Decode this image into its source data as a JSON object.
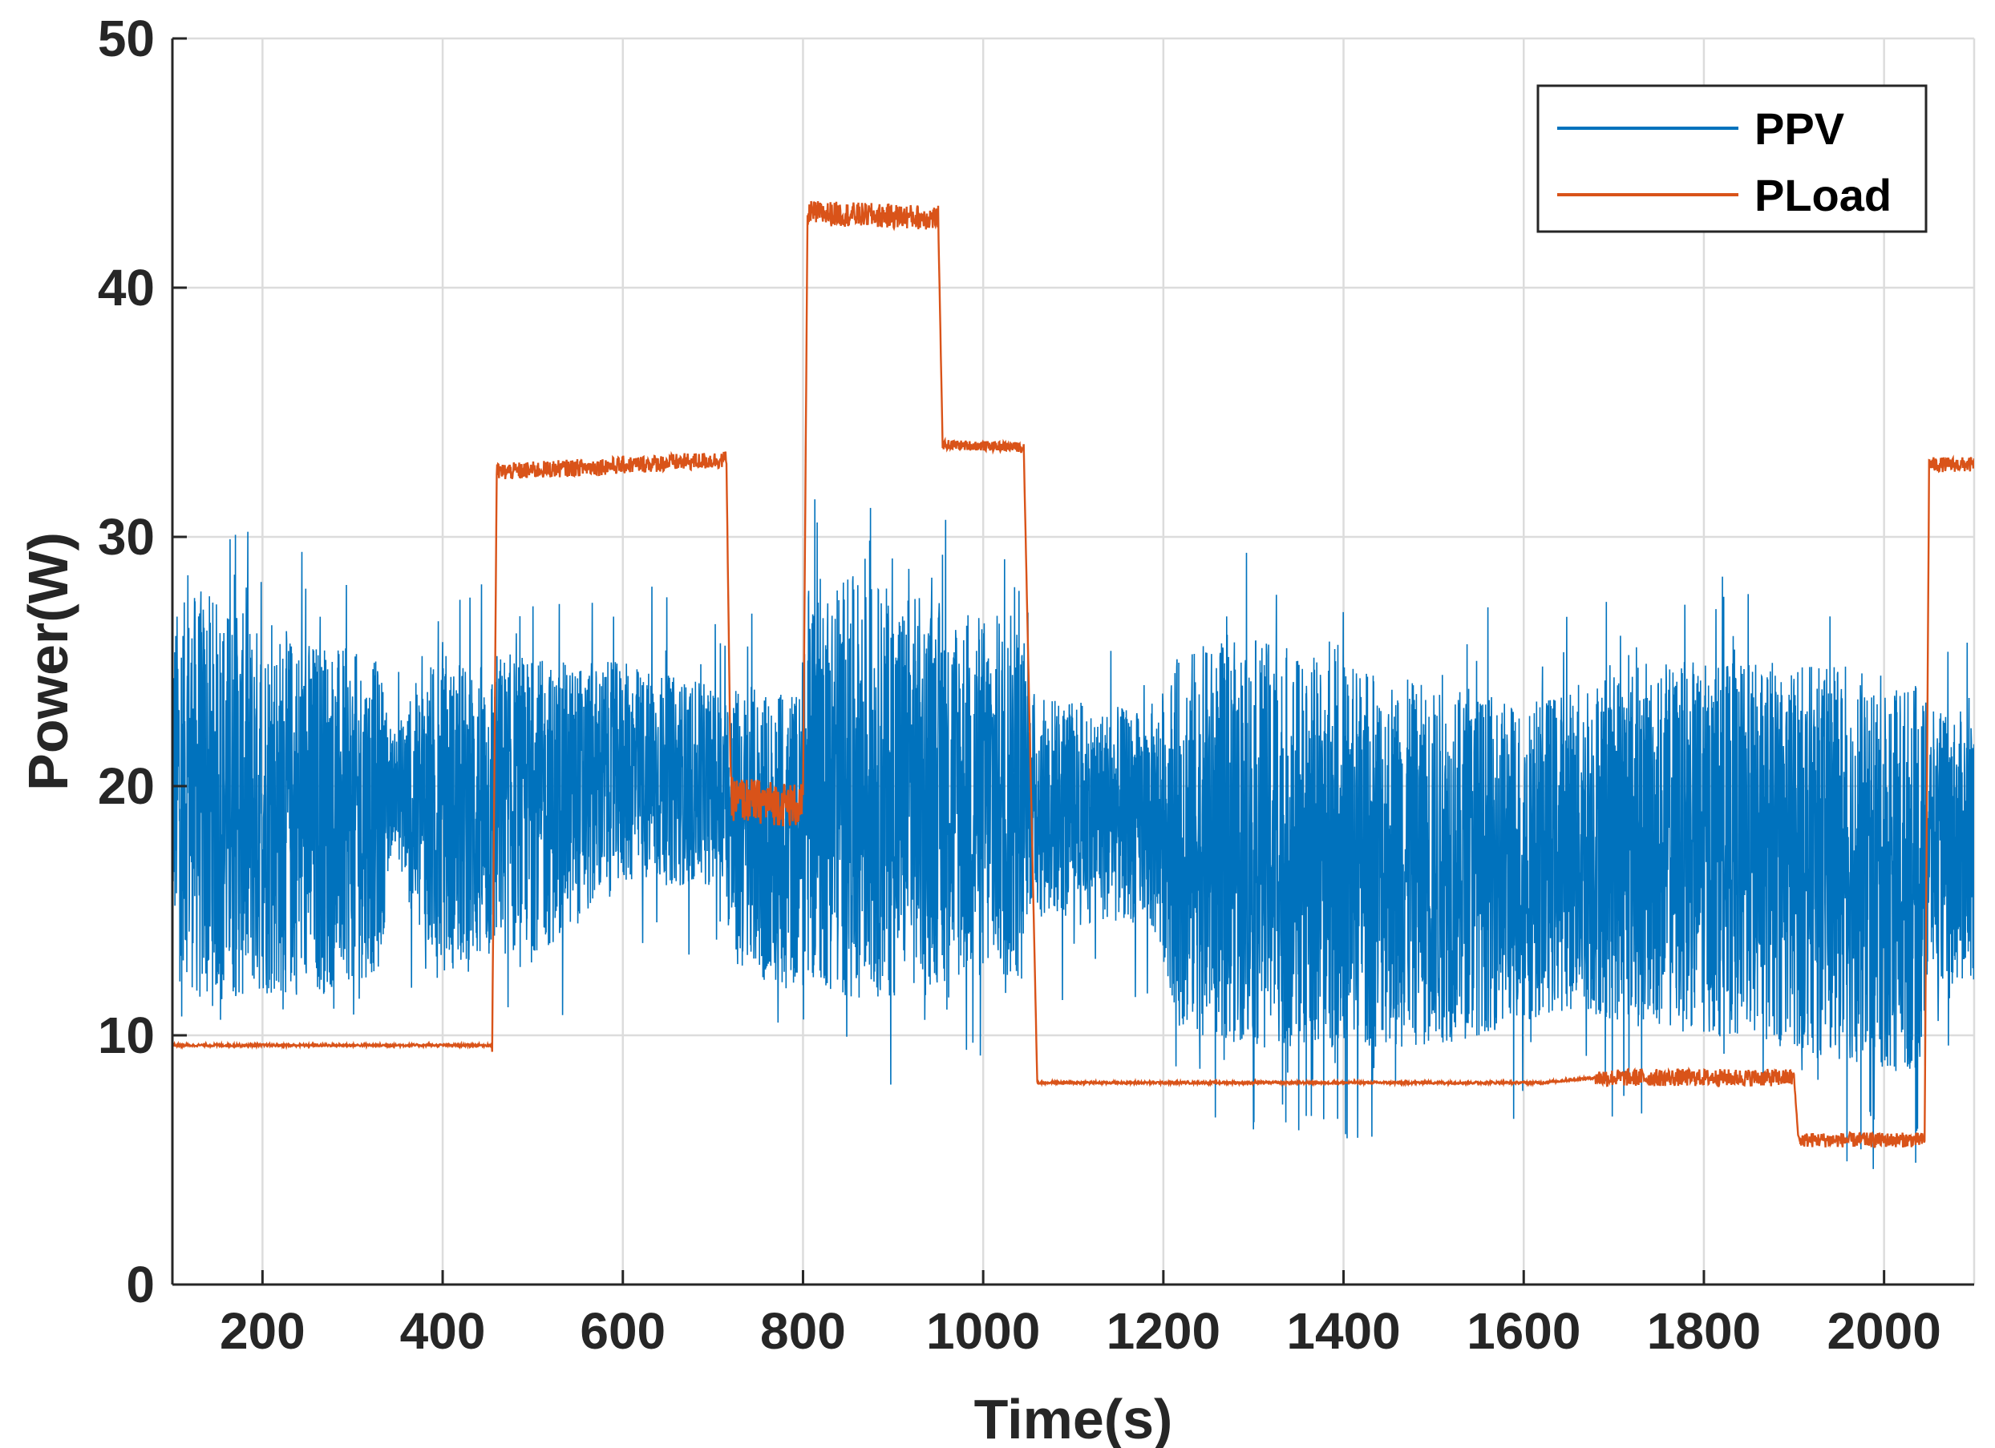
{
  "chart_data": {
    "type": "line",
    "title": "",
    "xlabel": "Time(s)",
    "ylabel": "Power(W)",
    "xlim": [
      100,
      2100
    ],
    "ylim": [
      0,
      50
    ],
    "xticks": [
      200,
      400,
      600,
      800,
      1000,
      1200,
      1400,
      1600,
      1800,
      2000
    ],
    "yticks": [
      0,
      10,
      20,
      30,
      40,
      50
    ],
    "grid": true,
    "legend_position": "top-right",
    "series": [
      {
        "name": "PPV",
        "color": "#0072BD",
        "style": "noisy-band",
        "envelope": {
          "x": [
            100,
            130,
            200,
            260,
            330,
            345,
            380,
            450,
            460,
            520,
            600,
            700,
            715,
            720,
            790,
            800,
            805,
            850,
            900,
            950,
            1000,
            1040,
            1050,
            1100,
            1180,
            1200,
            1220,
            1300,
            1400,
            1500,
            1600,
            1650,
            1700,
            1800,
            1900,
            2000,
            2040,
            2050,
            2100
          ],
          "low": [
            14,
            11,
            11.5,
            11.5,
            12.5,
            18,
            12.5,
            12.5,
            13,
            13.5,
            16,
            16,
            15.5,
            12.5,
            12,
            11.5,
            12,
            11.5,
            11.5,
            12,
            12,
            12,
            15,
            14.5,
            14.5,
            13,
            10,
            9.5,
            9.5,
            9.5,
            10.5,
            11,
            10.5,
            10,
            9.5,
            8.5,
            8.5,
            12,
            12
          ],
          "high": [
            27,
            28,
            26.5,
            26,
            25,
            22,
            25,
            25,
            25.5,
            25,
            25,
            24,
            24,
            24,
            24,
            24,
            28.5,
            28.5,
            28,
            27.5,
            27,
            27,
            24,
            23.5,
            23,
            24,
            25.5,
            26,
            25,
            24,
            23.5,
            24,
            25,
            25,
            25,
            24.5,
            24,
            23,
            23
          ]
        }
      },
      {
        "name": "PLoad",
        "color": "#D95319",
        "style": "step",
        "x": [
          100,
          455,
          460,
          715,
          720,
          800,
          805,
          950,
          955,
          1045,
          1060,
          1620,
          1680,
          1900,
          1905,
          2045,
          2050,
          2100
        ],
        "values": [
          9.6,
          9.6,
          32.6,
          33.1,
          19.5,
          19.2,
          43.0,
          42.8,
          33.7,
          33.6,
          8.1,
          8.1,
          8.3,
          8.3,
          5.8,
          5.8,
          32.9,
          32.9
        ],
        "noise": [
          {
            "from": 455,
            "to": 715,
            "amp": 0.35
          },
          {
            "from": 720,
            "to": 800,
            "amp": 0.9
          },
          {
            "from": 805,
            "to": 950,
            "amp": 0.5
          },
          {
            "from": 955,
            "to": 1045,
            "amp": 0.2
          },
          {
            "from": 1680,
            "to": 1900,
            "amp": 0.35
          },
          {
            "from": 1905,
            "to": 2045,
            "amp": 0.3
          },
          {
            "from": 2050,
            "to": 2100,
            "amp": 0.3
          }
        ]
      }
    ]
  }
}
